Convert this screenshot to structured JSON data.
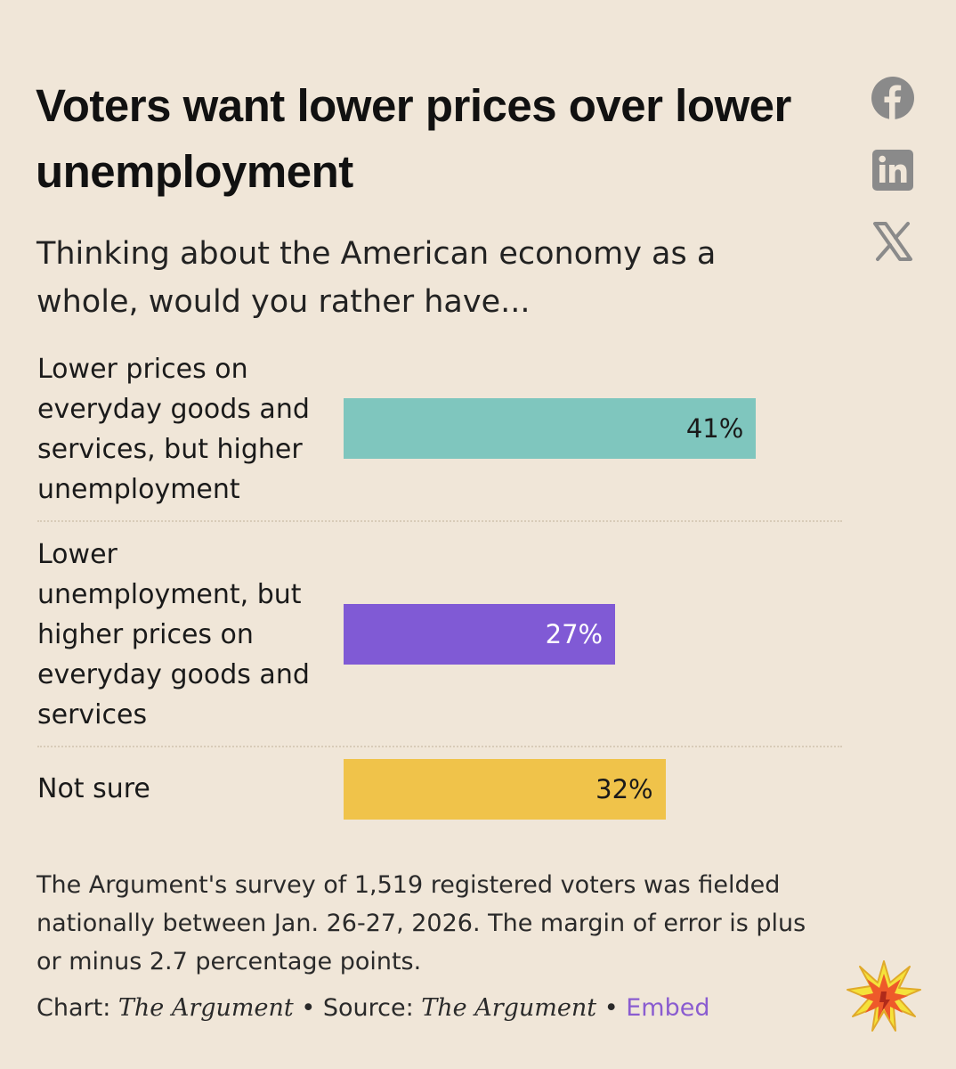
{
  "chart_data": {
    "type": "bar",
    "orientation": "horizontal",
    "title": "Voters want lower prices over lower unemployment",
    "subtitle": "Thinking about the American economy as a whole, would you rather have...",
    "categories": [
      "Lower prices on everyday goods and services, but higher unemployment",
      "Lower unemployment, but higher prices on everyday goods and services",
      "Not sure"
    ],
    "values": [
      41,
      27,
      32
    ],
    "value_labels": [
      "41%",
      "27%",
      "32%"
    ],
    "colors": [
      "#7fc6be",
      "#805ad5",
      "#f0c34a"
    ],
    "label_colors": [
      "#1a1a1a",
      "#ffffff",
      "#1a1a1a"
    ],
    "xlim": [
      0,
      100
    ],
    "xlabel": "",
    "ylabel": ""
  },
  "note": "The Argument's survey of 1,519 registered voters was fielded nationally between Jan. 26-27, 2026. The margin of error is plus or minus 2.7 percentage points.",
  "credits": {
    "chart_prefix": "Chart: ",
    "chart_source": "The Argument",
    "sep1": " • Source: ",
    "source": "The Argument",
    "sep2": " • ",
    "embed": "Embed"
  },
  "share": {
    "icons": [
      "facebook-icon",
      "linkedin-icon",
      "x-icon"
    ],
    "color": "#8a8a8a"
  }
}
